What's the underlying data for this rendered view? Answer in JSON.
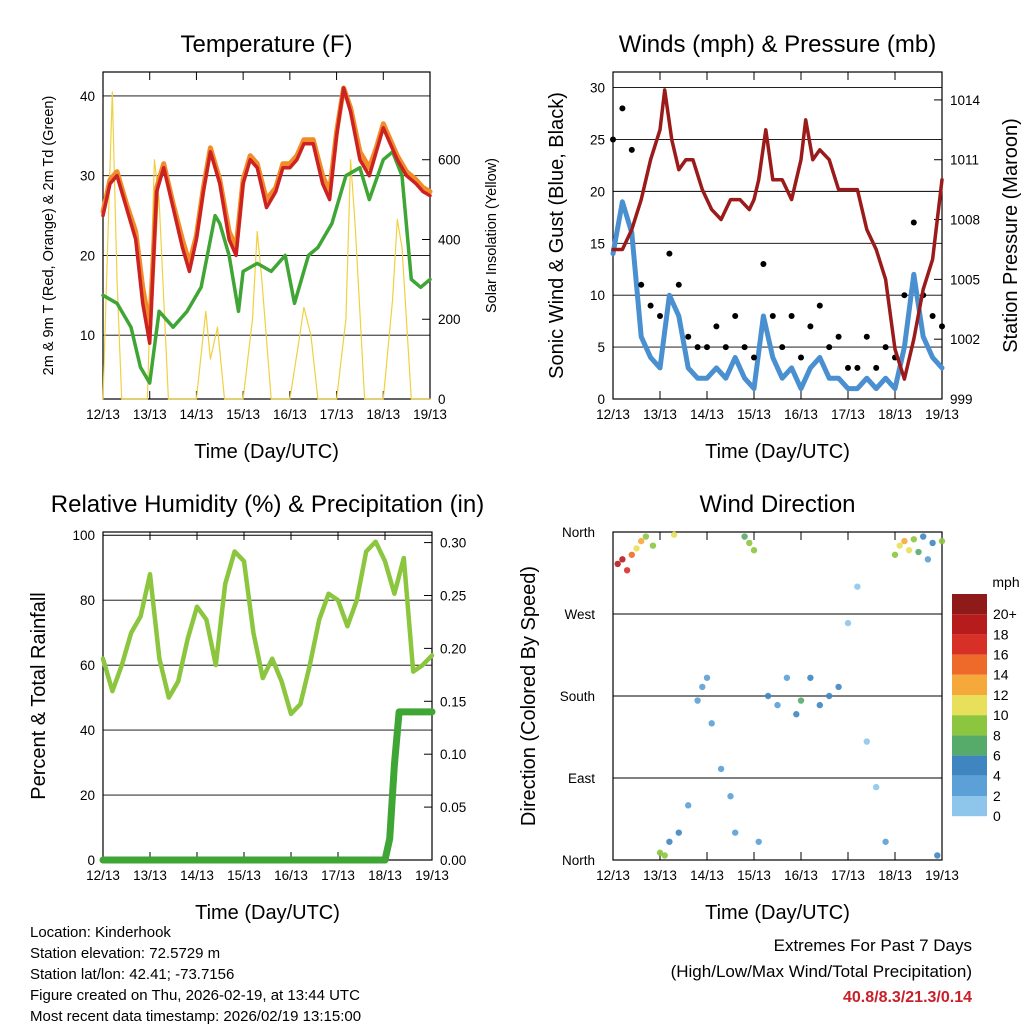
{
  "chart_data": [
    {
      "type": "line",
      "title": "Temperature (F)",
      "xlabel": "Time (Day/UTC)",
      "ylabel": "2m & 9m T (Red, Orange) & 2m Td (Green)",
      "ylabel_right": "Solar Insolation (Yellow)",
      "x_ticks": [
        "12/13",
        "13/13",
        "14/13",
        "15/13",
        "16/13",
        "17/13",
        "18/13",
        "19/13"
      ],
      "ylim": [
        2,
        43
      ],
      "y_ticks": [
        10,
        20,
        30,
        40
      ],
      "y2lim": [
        0,
        820
      ],
      "y2_ticks": [
        0,
        200,
        400,
        600
      ],
      "colors": {
        "t2m": "#cc2222",
        "t9m": "#f28c28",
        "td": "#3fa535",
        "solar": "#f0d040"
      },
      "series": [
        {
          "name": "2m T",
          "x": [
            0,
            0.15,
            0.3,
            0.5,
            0.7,
            0.85,
            1.0,
            1.15,
            1.3,
            1.5,
            1.7,
            1.85,
            2.0,
            2.15,
            2.3,
            2.5,
            2.7,
            2.85,
            3.0,
            3.15,
            3.3,
            3.5,
            3.7,
            3.85,
            4.0,
            4.15,
            4.3,
            4.5,
            4.7,
            4.85,
            5.0,
            5.15,
            5.3,
            5.5,
            5.7,
            5.85,
            6.0,
            6.15,
            6.3,
            6.5,
            6.7,
            6.85,
            7.0
          ],
          "values": [
            25,
            29,
            30,
            26,
            22,
            14,
            9,
            28,
            31,
            26,
            21,
            18,
            22,
            28,
            33,
            29,
            22,
            20,
            29,
            32,
            31,
            26,
            28,
            31,
            31,
            32,
            34,
            34,
            29,
            27,
            35,
            41,
            38,
            32,
            30,
            33,
            36,
            34,
            32,
            30,
            29,
            28,
            27.5
          ]
        },
        {
          "name": "9m T",
          "x": [
            0,
            0.15,
            0.3,
            0.5,
            0.7,
            0.85,
            1.0,
            1.15,
            1.3,
            1.5,
            1.7,
            1.85,
            2.0,
            2.15,
            2.3,
            2.5,
            2.7,
            2.85,
            3.0,
            3.15,
            3.3,
            3.5,
            3.7,
            3.85,
            4.0,
            4.15,
            4.3,
            4.5,
            4.7,
            4.85,
            5.0,
            5.15,
            5.3,
            5.5,
            5.7,
            5.85,
            6.0,
            6.15,
            6.3,
            6.5,
            6.7,
            6.85,
            7.0
          ],
          "values": [
            25.5,
            29.5,
            30.5,
            26.5,
            23,
            16,
            11,
            28.5,
            31.5,
            26.5,
            22,
            19,
            22.5,
            28.5,
            33.5,
            29.5,
            23,
            21,
            29.5,
            32.5,
            31.5,
            27,
            28.5,
            31.5,
            31.5,
            32.5,
            34.5,
            34.5,
            30,
            28,
            35.5,
            41,
            38.5,
            33,
            31,
            33.5,
            36.5,
            34.5,
            32.5,
            30.5,
            29.5,
            28.5,
            28
          ]
        },
        {
          "name": "2m Td",
          "x": [
            0,
            0.3,
            0.6,
            0.8,
            1.0,
            1.2,
            1.5,
            1.8,
            2.1,
            2.4,
            2.5,
            2.7,
            2.9,
            3.0,
            3.3,
            3.6,
            3.9,
            4.1,
            4.4,
            4.6,
            4.9,
            5.2,
            5.5,
            5.7,
            6.0,
            6.2,
            6.4,
            6.6,
            6.8,
            7.0
          ],
          "values": [
            15,
            14,
            11,
            6,
            4,
            13,
            11,
            13,
            16,
            25,
            24,
            20,
            13,
            18,
            19,
            18,
            20,
            14,
            20,
            21,
            24,
            30,
            31,
            27,
            32,
            33,
            30,
            17,
            16,
            17
          ]
        },
        {
          "name": "Solar Insolation",
          "axis": "right",
          "x": [
            0,
            0.2,
            0.3,
            0.4,
            0.6,
            0.8,
            0.95,
            1.1,
            1.2,
            1.4,
            1.6,
            2.0,
            2.2,
            2.3,
            2.45,
            2.6,
            3.0,
            3.2,
            3.3,
            3.4,
            3.6,
            4.0,
            4.2,
            4.3,
            4.45,
            4.6,
            5.0,
            5.2,
            5.3,
            5.4,
            5.6,
            6.0,
            6.2,
            6.3,
            6.4,
            6.6,
            7.0
          ],
          "values": [
            0,
            770,
            300,
            0,
            0,
            0,
            0,
            600,
            500,
            0,
            0,
            0,
            220,
            100,
            180,
            0,
            0,
            200,
            420,
            300,
            0,
            0,
            150,
            230,
            160,
            0,
            0,
            200,
            600,
            430,
            0,
            0,
            250,
            450,
            380,
            0,
            0
          ]
        }
      ]
    },
    {
      "type": "line",
      "title": "Winds (mph) & Pressure (mb)",
      "xlabel": "Time (Day/UTC)",
      "ylabel": "Sonic Wind & Gust (Blue, Black)",
      "ylabel_right": "Station Pressure (Maroon)",
      "x_ticks": [
        "12/13",
        "13/13",
        "14/13",
        "15/13",
        "16/13",
        "17/13",
        "18/13",
        "19/13"
      ],
      "ylim": [
        0,
        31.5
      ],
      "y_ticks": [
        0,
        5,
        10,
        15,
        20,
        25,
        30
      ],
      "y2lim": [
        999,
        1015.4
      ],
      "y2_ticks": [
        999,
        1002,
        1005,
        1008,
        1011,
        1014
      ],
      "colors": {
        "wind": "#4a90d0",
        "gust": "#000000",
        "pressure": "#9b1b1b"
      },
      "series": [
        {
          "name": "Wind",
          "x": [
            0,
            0.2,
            0.4,
            0.6,
            0.8,
            1.0,
            1.2,
            1.4,
            1.6,
            1.8,
            2.0,
            2.2,
            2.4,
            2.6,
            2.8,
            3.0,
            3.2,
            3.4,
            3.6,
            3.8,
            4.0,
            4.2,
            4.4,
            4.6,
            4.8,
            5.0,
            5.2,
            5.4,
            5.6,
            5.8,
            6.0,
            6.2,
            6.4,
            6.6,
            6.8,
            7.0
          ],
          "values": [
            14,
            19,
            16,
            6,
            4,
            3,
            10,
            8,
            3,
            2,
            2,
            3,
            2,
            4,
            2,
            1,
            8,
            4,
            2,
            3,
            1,
            3,
            4,
            2,
            2,
            1,
            1,
            2,
            1,
            2,
            1,
            5,
            12,
            6,
            4,
            3
          ]
        },
        {
          "name": "Gust",
          "x": [
            0,
            0.2,
            0.4,
            0.6,
            0.8,
            1.0,
            1.2,
            1.4,
            1.6,
            1.8,
            2.0,
            2.2,
            2.4,
            2.6,
            2.8,
            3.0,
            3.2,
            3.4,
            3.6,
            3.8,
            4.0,
            4.2,
            4.4,
            4.6,
            4.8,
            5.0,
            5.2,
            5.4,
            5.6,
            5.8,
            6.0,
            6.2,
            6.4,
            6.6,
            6.8,
            7.0
          ],
          "values": [
            25,
            28,
            24,
            11,
            9,
            8,
            14,
            11,
            6,
            5,
            5,
            7,
            5,
            8,
            5,
            4,
            13,
            8,
            5,
            8,
            4,
            7,
            9,
            5,
            6,
            3,
            3,
            6,
            3,
            5,
            4,
            10,
            17,
            10,
            8,
            7
          ]
        },
        {
          "name": "Pressure",
          "axis": "right",
          "x": [
            0,
            0.2,
            0.4,
            0.6,
            0.8,
            1.0,
            1.1,
            1.25,
            1.4,
            1.55,
            1.7,
            1.9,
            2.1,
            2.3,
            2.5,
            2.7,
            2.9,
            3.0,
            3.1,
            3.25,
            3.4,
            3.6,
            3.8,
            4.0,
            4.1,
            4.25,
            4.4,
            4.6,
            4.8,
            5.0,
            5.2,
            5.4,
            5.6,
            5.8,
            6.0,
            6.2,
            6.4,
            6.6,
            6.8,
            7.0
          ],
          "values": [
            1006.5,
            1006.5,
            1007.5,
            1009,
            1011,
            1012.5,
            1014.5,
            1012,
            1010.5,
            1011,
            1011,
            1009.5,
            1008.5,
            1008,
            1009,
            1009,
            1008.5,
            1009,
            1010,
            1012.5,
            1010,
            1010,
            1009,
            1011,
            1013,
            1011,
            1011.5,
            1011,
            1009.5,
            1009.5,
            1009.5,
            1007.5,
            1006.5,
            1005,
            1001.5,
            1000,
            1002,
            1004.5,
            1006,
            1010
          ]
        }
      ]
    },
    {
      "type": "line",
      "title": "Relative Humidity (%) & Precipitation (in)",
      "xlabel": "Time (Day/UTC)",
      "ylabel": "Percent & Total Rainfall",
      "x_ticks": [
        "12/13",
        "13/13",
        "14/13",
        "15/13",
        "16/13",
        "17/13",
        "18/13",
        "19/13"
      ],
      "ylim": [
        0,
        101
      ],
      "y_ticks": [
        0,
        20,
        40,
        60,
        80,
        100
      ],
      "y2lim": [
        0,
        0.31
      ],
      "y2_ticks": [
        "0.00",
        "0.05",
        "0.10",
        "0.15",
        "0.20",
        "0.25",
        "0.30"
      ],
      "colors": {
        "rh": "#8cc63f",
        "precip": "#3fa535"
      },
      "series": [
        {
          "name": "RH",
          "x": [
            0,
            0.2,
            0.4,
            0.6,
            0.8,
            1.0,
            1.2,
            1.4,
            1.6,
            1.8,
            2.0,
            2.2,
            2.4,
            2.6,
            2.8,
            3.0,
            3.2,
            3.4,
            3.6,
            3.8,
            4.0,
            4.2,
            4.4,
            4.6,
            4.8,
            5.0,
            5.2,
            5.4,
            5.6,
            5.8,
            6.0,
            6.2,
            6.4,
            6.6,
            6.8,
            7.0
          ],
          "values": [
            62,
            52,
            60,
            70,
            75,
            88,
            62,
            50,
            55,
            68,
            78,
            74,
            60,
            85,
            95,
            92,
            70,
            56,
            62,
            55,
            45,
            48,
            60,
            74,
            82,
            80,
            72,
            80,
            95,
            98,
            92,
            82,
            93,
            58,
            60,
            63
          ]
        },
        {
          "name": "Precipitation",
          "axis": "right",
          "x": [
            0,
            6.0,
            6.1,
            6.2,
            6.3,
            6.4,
            7.0
          ],
          "values": [
            0,
            0,
            0.02,
            0.09,
            0.14,
            0.14,
            0.14
          ]
        }
      ]
    },
    {
      "type": "scatter",
      "title": "Wind Direction",
      "xlabel": "Time (Day/UTC)",
      "ylabel": "Direction (Colored By Speed)",
      "x_ticks": [
        "12/13",
        "13/13",
        "14/13",
        "15/13",
        "16/13",
        "17/13",
        "18/13",
        "19/13"
      ],
      "y_categories": [
        "North",
        "East",
        "South",
        "West",
        "North"
      ],
      "ylim": [
        0,
        360
      ],
      "colorbar": {
        "title": "mph",
        "labels": [
          "0",
          "2",
          "4",
          "6",
          "8",
          "10",
          "12",
          "14",
          "16",
          "18",
          "20+"
        ],
        "colors": [
          "#bfe6f7",
          "#8ec5ea",
          "#5ba0d6",
          "#3f86c1",
          "#56ab6a",
          "#8cc63f",
          "#e8e05a",
          "#f6a93b",
          "#ee6a2b",
          "#d73027",
          "#b71c1c",
          "#8e1a1a"
        ]
      },
      "points": [
        {
          "x": 0.1,
          "y": 325,
          "s": 20
        },
        {
          "x": 0.2,
          "y": 330,
          "s": 19
        },
        {
          "x": 0.3,
          "y": 318,
          "s": 18
        },
        {
          "x": 0.4,
          "y": 335,
          "s": 16
        },
        {
          "x": 0.5,
          "y": 342,
          "s": 12
        },
        {
          "x": 0.6,
          "y": 350,
          "s": 14
        },
        {
          "x": 0.7,
          "y": 355,
          "s": 10
        },
        {
          "x": 0.85,
          "y": 345,
          "s": 9
        },
        {
          "x": 1.0,
          "y": 8,
          "s": 9
        },
        {
          "x": 1.1,
          "y": 5,
          "s": 10
        },
        {
          "x": 1.2,
          "y": 20,
          "s": 6
        },
        {
          "x": 1.3,
          "y": 357,
          "s": 11
        },
        {
          "x": 1.4,
          "y": 30,
          "s": 5
        },
        {
          "x": 1.6,
          "y": 60,
          "s": 4
        },
        {
          "x": 1.8,
          "y": 175,
          "s": 4
        },
        {
          "x": 1.9,
          "y": 190,
          "s": 4
        },
        {
          "x": 2.0,
          "y": 200,
          "s": 3
        },
        {
          "x": 2.1,
          "y": 150,
          "s": 3
        },
        {
          "x": 2.3,
          "y": 100,
          "s": 3
        },
        {
          "x": 2.5,
          "y": 70,
          "s": 3
        },
        {
          "x": 2.6,
          "y": 30,
          "s": 3
        },
        {
          "x": 2.8,
          "y": 355,
          "s": 8
        },
        {
          "x": 2.9,
          "y": 348,
          "s": 10
        },
        {
          "x": 3.0,
          "y": 340,
          "s": 9
        },
        {
          "x": 3.1,
          "y": 20,
          "s": 4
        },
        {
          "x": 3.3,
          "y": 180,
          "s": 5
        },
        {
          "x": 3.5,
          "y": 170,
          "s": 4
        },
        {
          "x": 3.7,
          "y": 200,
          "s": 4
        },
        {
          "x": 3.9,
          "y": 160,
          "s": 6
        },
        {
          "x": 4.0,
          "y": 175,
          "s": 7
        },
        {
          "x": 4.2,
          "y": 200,
          "s": 6
        },
        {
          "x": 4.4,
          "y": 170,
          "s": 5
        },
        {
          "x": 4.6,
          "y": 180,
          "s": 5
        },
        {
          "x": 4.8,
          "y": 190,
          "s": 6
        },
        {
          "x": 5.0,
          "y": 260,
          "s": 1
        },
        {
          "x": 5.2,
          "y": 300,
          "s": 1
        },
        {
          "x": 5.4,
          "y": 130,
          "s": 1
        },
        {
          "x": 5.6,
          "y": 80,
          "s": 2
        },
        {
          "x": 5.8,
          "y": 20,
          "s": 3
        },
        {
          "x": 6.0,
          "y": 335,
          "s": 9
        },
        {
          "x": 6.1,
          "y": 345,
          "s": 12
        },
        {
          "x": 6.2,
          "y": 350,
          "s": 14
        },
        {
          "x": 6.3,
          "y": 340,
          "s": 12
        },
        {
          "x": 6.4,
          "y": 352,
          "s": 10
        },
        {
          "x": 6.5,
          "y": 338,
          "s": 8
        },
        {
          "x": 6.6,
          "y": 355,
          "s": 5
        },
        {
          "x": 6.7,
          "y": 330,
          "s": 4
        },
        {
          "x": 6.8,
          "y": 348,
          "s": 6
        },
        {
          "x": 6.9,
          "y": 5,
          "s": 5
        },
        {
          "x": 7.0,
          "y": 350,
          "s": 9
        }
      ]
    }
  ],
  "info": {
    "location": "Location: Kinderhook",
    "elevation": "Station elevation: 72.5729 m",
    "latlon": "Station lat/lon: 42.41; -73.7156",
    "created": "Figure created on Thu, 2026-02-19, at 13:44 UTC",
    "recent": "Most recent data timestamp: 2026/02/19 13:15:00"
  },
  "extremes": {
    "title": "Extremes For Past 7 Days",
    "subtitle": "(High/Low/Max Wind/Total Precipitation)",
    "values": "40.8/8.3/21.3/0.14"
  }
}
